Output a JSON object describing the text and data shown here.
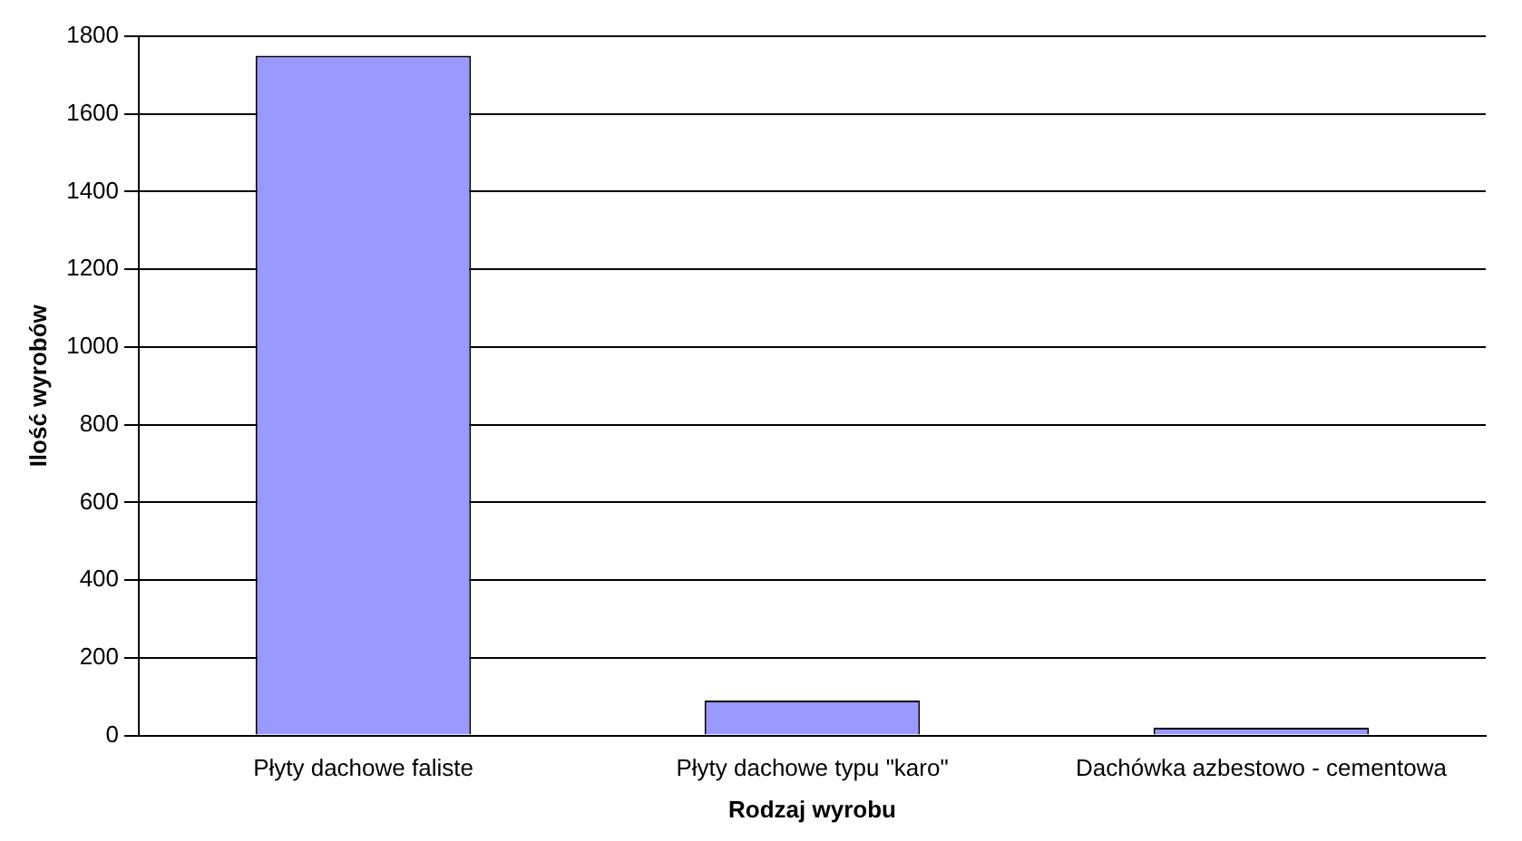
{
  "chart_data": {
    "type": "bar",
    "xlabel": "Rodzaj wyrobu",
    "ylabel": "Ilość wyrobów",
    "categories": [
      "Płyty dachowe faliste",
      "Płyty dachowe typu \"karo\"",
      "Dachówka azbestowo - cementowa"
    ],
    "values": [
      1750,
      90,
      20
    ],
    "color": "#9999ff",
    "ylim": [
      0,
      1800
    ],
    "yticks": [
      0,
      200,
      400,
      600,
      800,
      1000,
      1200,
      1400,
      1600,
      1800
    ],
    "grid": "y",
    "legend": false
  }
}
